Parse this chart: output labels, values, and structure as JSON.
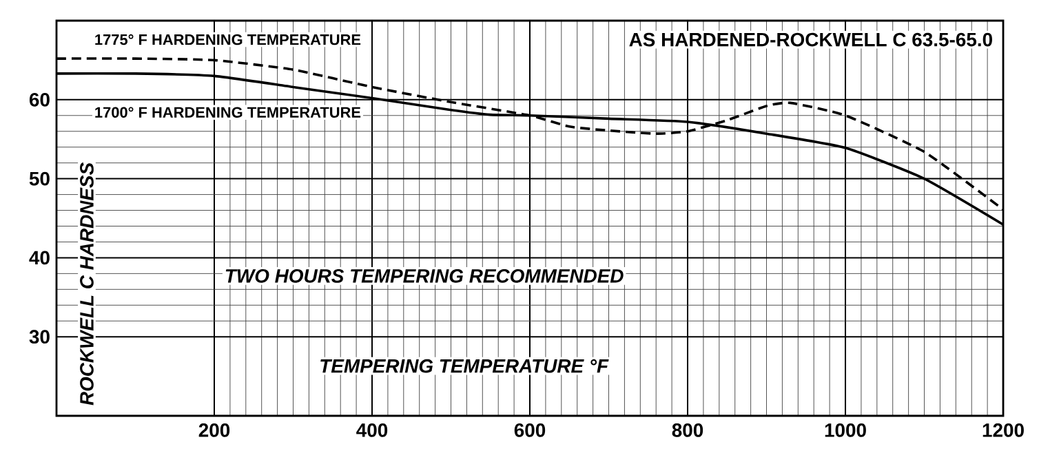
{
  "chart_data": {
    "type": "line",
    "xlabel": "TEMPERING TEMPERATURE °F",
    "ylabel": "ROCKWELL C HARDNESS",
    "annotations": [
      "AS HARDENED-ROCKWELL C 63.5-65.0",
      "TWO HOURS TEMPERING RECOMMENDED"
    ],
    "xlim": [
      0,
      1200
    ],
    "xticks": [
      200,
      400,
      600,
      800,
      1000,
      1200
    ],
    "ylim": [
      20,
      70
    ],
    "yticks": [
      30,
      40,
      50,
      60
    ],
    "grid": true,
    "series": [
      {
        "name": "1775° F HARDENING TEMPERATURE",
        "color": "#000000",
        "line_style": "dashed",
        "x": [
          0,
          100,
          200,
          300,
          400,
          500,
          600,
          650,
          700,
          760,
          800,
          850,
          900,
          930,
          1000,
          1100,
          1200
        ],
        "values": [
          65.2,
          65.2,
          65.0,
          63.8,
          61.6,
          59.7,
          58.0,
          56.6,
          56.1,
          55.7,
          56.0,
          57.4,
          59.2,
          59.6,
          58.0,
          53.4,
          46.1
        ]
      },
      {
        "name": "1700° F HARDENING TEMPERATURE",
        "color": "#000000",
        "line_style": "solid",
        "x": [
          0,
          100,
          200,
          300,
          400,
          500,
          550,
          600,
          700,
          800,
          900,
          1000,
          1100,
          1200
        ],
        "values": [
          63.3,
          63.3,
          63.0,
          61.6,
          60.2,
          58.7,
          58.1,
          58.0,
          57.6,
          57.2,
          55.7,
          53.9,
          50.0,
          44.2
        ]
      }
    ]
  }
}
